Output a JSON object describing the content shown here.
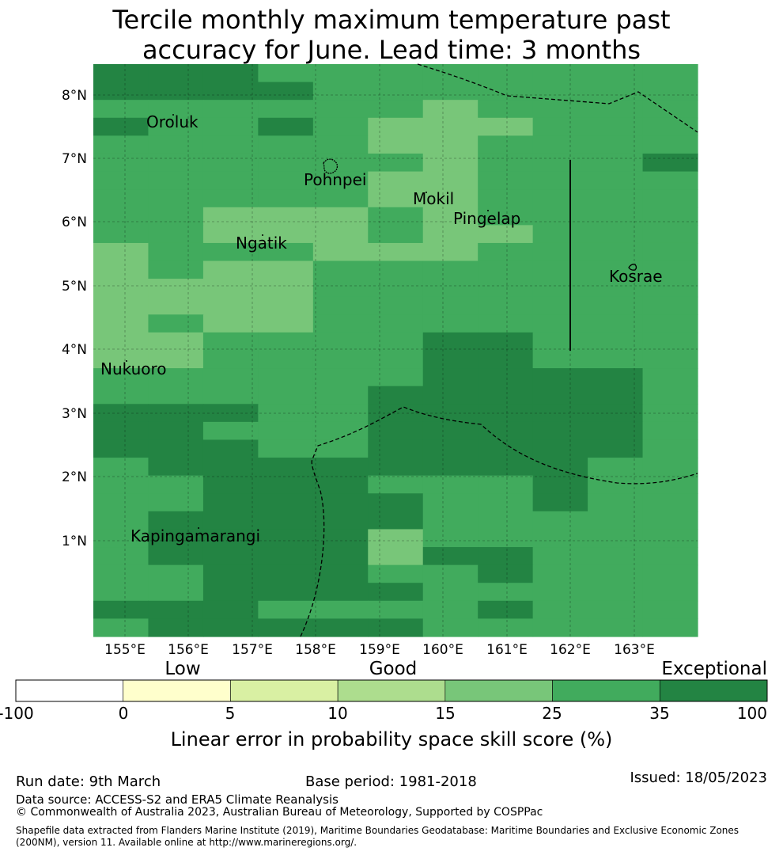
{
  "title": {
    "line1": "Tercile monthly maximum temperature past",
    "line2": "accuracy for June. Lead time: 3 months"
  },
  "map": {
    "lat_labels": [
      "8°N",
      "7°N",
      "6°N",
      "5°N",
      "4°N",
      "3°N",
      "2°N",
      "1°N"
    ],
    "lon_labels": [
      "155°E",
      "156°E",
      "157°E",
      "158°E",
      "159°E",
      "160°E",
      "161°E",
      "162°E",
      "163°E"
    ],
    "places": [
      {
        "name": "Oroluk"
      },
      {
        "name": "Pohnpei"
      },
      {
        "name": "Mokil"
      },
      {
        "name": "Pingelap"
      },
      {
        "name": "Ngatik"
      },
      {
        "name": "Kosrae"
      },
      {
        "name": "Nukuoro"
      },
      {
        "name": "Kapingamarangi"
      }
    ],
    "colors": {
      "c2": "#ffffcc",
      "c3": "#d9f0a3",
      "c4": "#addd8e",
      "c5": "#78c679",
      "c6": "#41ab5d",
      "c7": "#238443"
    },
    "grid_rows": [
      "77766666666",
      "77776666666",
      "66666656666",
      "76676555666",
      "66666556666",
      "66666656667",
      "66666556666",
      "66666556666",
      "66555656666",
      "66555655666",
      "56665556666",
      "56556666666",
      "55556666666",
      "55556666666",
      "56556666666",
      "55666677666",
      "55666677666",
      "66666677776",
      "66666777776",
      "77766777776",
      "77666777776",
      "77766777776",
      "67777777766",
      "66777666766",
      "66777766766",
      "67777766666",
      "67777566666",
      "67777577666",
      "66777667666",
      "66777766666",
      "77766667666",
      "67777766666"
    ]
  },
  "colorbar": {
    "categories": [
      "Low",
      "Good",
      "Exceptional"
    ],
    "ticks": [
      "-100",
      "0",
      "5",
      "10",
      "15",
      "25",
      "35",
      "100"
    ],
    "colors": [
      "#ffffff",
      "#ffffcc",
      "#d9f0a3",
      "#addd8e",
      "#78c679",
      "#41ab5d",
      "#238443"
    ],
    "title": "Linear error in probability space skill score (%)"
  },
  "footer": {
    "run_date": "Run date: 9th March",
    "base_period": "Base period: 1981-2018",
    "issued": "Issued: 18/05/2023",
    "data_source": "Data source: ACCESS-S2 and ERA5 Climate Reanalysis",
    "copyright": "© Commonwealth of Australia 2023, Australian Bureau of Meteorology, Supported by COSPPac",
    "shapefile": "Shapefile data extracted from Flanders Marine Institute (2019), Maritime Boundaries Geodatabase: Maritime Boundaries and Exclusive Economic Zones (200NM), version 11. Available online at http://www.marineregions.org/."
  }
}
